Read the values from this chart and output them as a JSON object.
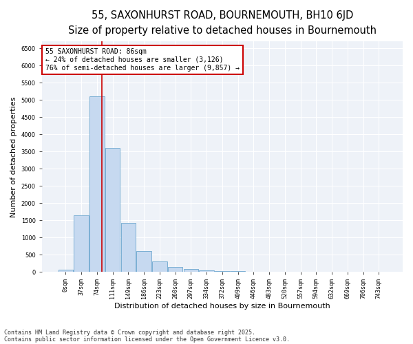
{
  "title_line1": "55, SAXONHURST ROAD, BOURNEMOUTH, BH10 6JD",
  "title_line2": "Size of property relative to detached houses in Bournemouth",
  "xlabel": "Distribution of detached houses by size in Bournemouth",
  "ylabel": "Number of detached properties",
  "bin_labels": [
    "0sqm",
    "37sqm",
    "74sqm",
    "111sqm",
    "149sqm",
    "186sqm",
    "223sqm",
    "260sqm",
    "297sqm",
    "334sqm",
    "372sqm",
    "409sqm",
    "446sqm",
    "483sqm",
    "520sqm",
    "557sqm",
    "594sqm",
    "632sqm",
    "669sqm",
    "706sqm",
    "743sqm"
  ],
  "bar_values": [
    75,
    1640,
    5100,
    3600,
    1420,
    615,
    310,
    150,
    90,
    50,
    30,
    20,
    10,
    5,
    5,
    3,
    2,
    1,
    1,
    1,
    1
  ],
  "bar_color": "#c6d9f0",
  "bar_edge_color": "#7bafd4",
  "vline_x": 2.33,
  "vline_color": "#cc0000",
  "annotation_box_text": "55 SAXONHURST ROAD: 86sqm\n← 24% of detached houses are smaller (3,126)\n76% of semi-detached houses are larger (9,857) →",
  "ylim": [
    0,
    6700
  ],
  "yticks": [
    0,
    500,
    1000,
    1500,
    2000,
    2500,
    3000,
    3500,
    4000,
    4500,
    5000,
    5500,
    6000,
    6500
  ],
  "footnote1": "Contains HM Land Registry data © Crown copyright and database right 2025.",
  "footnote2": "Contains public sector information licensed under the Open Government Licence v3.0.",
  "bg_color": "#ffffff",
  "plot_bg_color": "#eef2f8",
  "annotation_fontsize": 7,
  "title1_fontsize": 10.5,
  "title2_fontsize": 9,
  "tick_fontsize": 6,
  "axis_label_fontsize": 8,
  "footnote_fontsize": 6,
  "grid_color": "#ffffff"
}
